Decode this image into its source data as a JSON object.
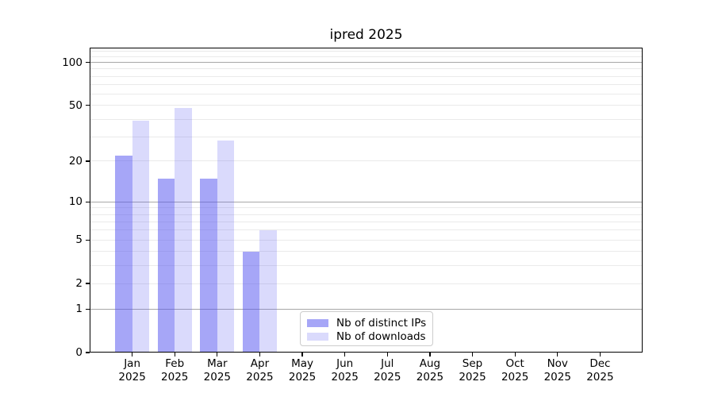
{
  "chart_data": {
    "type": "bar",
    "title": "ipred 2025",
    "year": "2025",
    "categories": [
      "Jan",
      "Feb",
      "Mar",
      "Apr",
      "May",
      "Jun",
      "Jul",
      "Aug",
      "Sep",
      "Oct",
      "Nov",
      "Dec"
    ],
    "series": [
      {
        "name": "Nb of distinct IPs",
        "key": "distinct-ips",
        "color": "rgba(85,85,240,0.52)",
        "solid_hex": "#a9a9f3",
        "values": [
          22,
          15,
          15,
          4,
          0,
          0,
          0,
          0,
          0,
          0,
          0,
          0
        ]
      },
      {
        "name": "Nb of downloads",
        "key": "downloads",
        "color": "rgba(85,85,240,0.22)",
        "solid_hex": "#dbdbf9",
        "values": [
          39,
          48,
          28,
          6,
          0,
          0,
          0,
          0,
          0,
          0,
          0,
          0
        ]
      }
    ],
    "xlabel": "",
    "ylabel": "",
    "y_scale": "log1p",
    "y_ticks": [
      100,
      50,
      20,
      10,
      5,
      2,
      1,
      0
    ],
    "y_axis_top_value": 126,
    "grid": {
      "major_values": [
        1,
        10,
        100
      ],
      "minor_values": [
        2,
        3,
        4,
        5,
        6,
        7,
        8,
        9,
        20,
        30,
        40,
        50,
        60,
        70,
        80,
        90,
        110,
        120
      ],
      "major_color": "#a8a8a8",
      "minor_color": "#eaeaea"
    },
    "legend_position": "lower center-left"
  }
}
